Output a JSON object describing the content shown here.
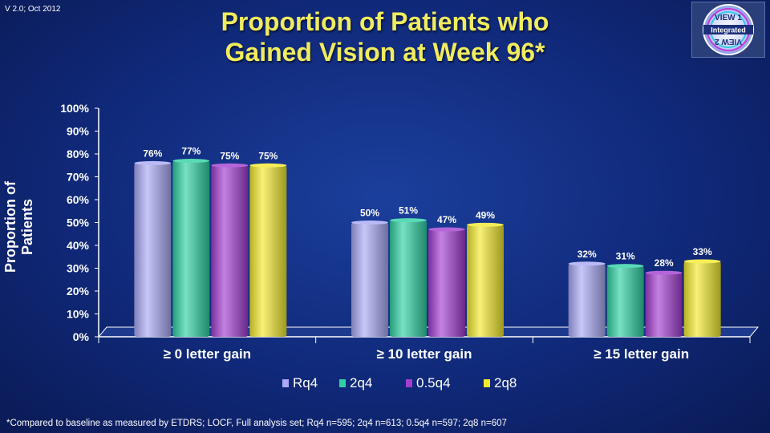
{
  "version": "V 2.0; Oct 2012",
  "title_line1": "Proportion of Patients who",
  "title_line2": "Gained Vision at Week 96*",
  "logo": {
    "top_text": "VIEW 1",
    "middle_text": "Integrated",
    "bottom_text": "VIEW 2"
  },
  "footnote": "*Compared to baseline as measured by ETDRS; LOCF, Full analysis set; Rq4 n=595; 2q4 n=613; 0.5q4 n=597; 2q8 n=607",
  "chart_data": {
    "type": "bar",
    "title": "Proportion of Patients who Gained Vision at Week 96*",
    "ylabel": "Proportion of Patients",
    "xlabel": "",
    "ylim": [
      0,
      100
    ],
    "yticks": [
      "0%",
      "10%",
      "20%",
      "30%",
      "40%",
      "50%",
      "60%",
      "70%",
      "80%",
      "90%",
      "100%"
    ],
    "categories": [
      "≥ 0 letter gain",
      "≥ 10 letter gain",
      "≥ 15 letter gain"
    ],
    "series": [
      {
        "name": "Rq4",
        "color": "#a9a9f5",
        "values": [
          76,
          50,
          32
        ]
      },
      {
        "name": "2q4",
        "color": "#2fd1a4",
        "values": [
          77,
          51,
          31
        ]
      },
      {
        "name": "0.5q4",
        "color": "#a23ed1",
        "values": [
          75,
          47,
          28
        ]
      },
      {
        "name": "2q8",
        "color": "#f2ea2e",
        "values": [
          75,
          49,
          33
        ]
      }
    ],
    "legend_position": "bottom",
    "grid": false
  }
}
